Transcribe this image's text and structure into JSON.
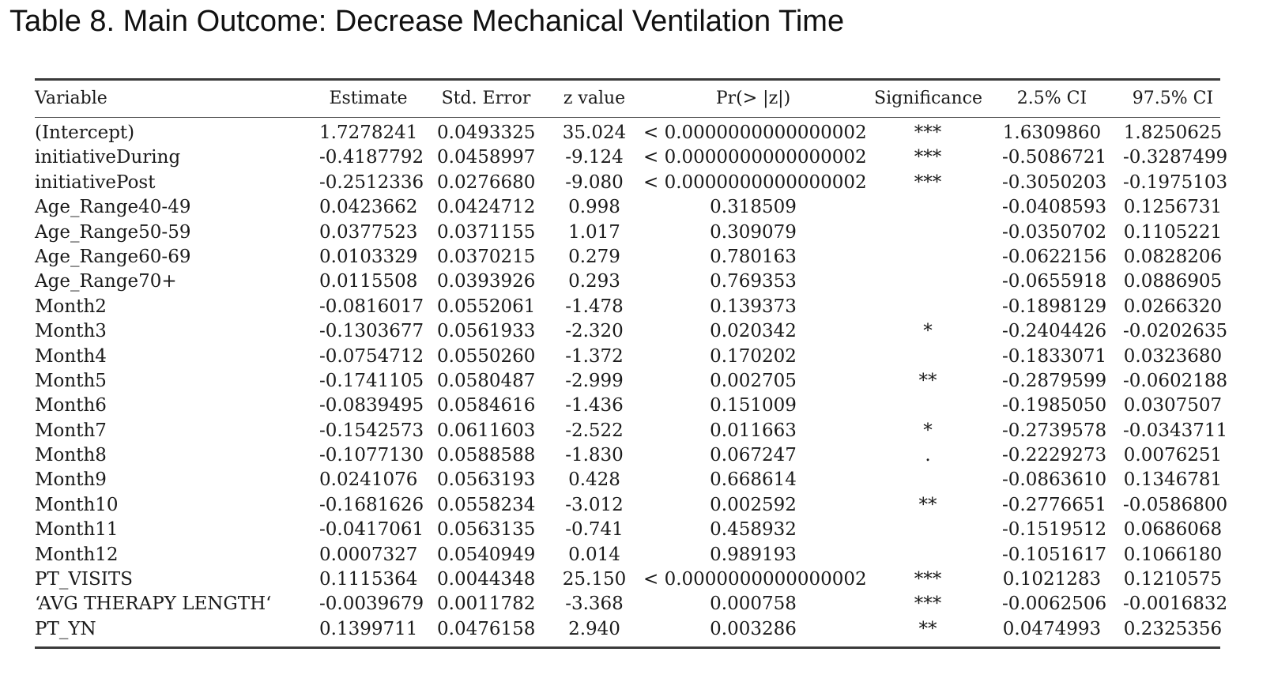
{
  "caption": "Table 8. Main Outcome: Decrease Mechanical Ventilation Time",
  "headers": {
    "variable": "Variable",
    "estimate": "Estimate",
    "std_error": "Std. Error",
    "z_value": "z value",
    "p_value": "Pr(> |z|)",
    "significance": "Significance",
    "ci_low": "2.5% CI",
    "ci_high": "97.5% CI"
  },
  "rows": [
    {
      "variable": "(Intercept)",
      "estimate": "1.7278241",
      "std_error": "0.0493325",
      "z_value": "35.024",
      "p_value": "< 0.0000000000000002",
      "significance": "***",
      "ci_low": "1.6309860",
      "ci_high": "1.8250625"
    },
    {
      "variable": "initiativeDuring",
      "estimate": "-0.4187792",
      "std_error": "0.0458997",
      "z_value": "-9.124",
      "p_value": "< 0.0000000000000002",
      "significance": "***",
      "ci_low": "-0.5086721",
      "ci_high": "-0.3287499"
    },
    {
      "variable": "initiativePost",
      "estimate": "-0.2512336",
      "std_error": "0.0276680",
      "z_value": "-9.080",
      "p_value": "< 0.0000000000000002",
      "significance": "***",
      "ci_low": "-0.3050203",
      "ci_high": "-0.1975103"
    },
    {
      "variable": "Age_Range40-49",
      "estimate": "0.0423662",
      "std_error": "0.0424712",
      "z_value": "0.998",
      "p_value": "0.318509",
      "significance": "",
      "ci_low": "-0.0408593",
      "ci_high": "0.1256731"
    },
    {
      "variable": "Age_Range50-59",
      "estimate": "0.0377523",
      "std_error": "0.0371155",
      "z_value": "1.017",
      "p_value": "0.309079",
      "significance": "",
      "ci_low": "-0.0350702",
      "ci_high": "0.1105221"
    },
    {
      "variable": "Age_Range60-69",
      "estimate": "0.0103329",
      "std_error": "0.0370215",
      "z_value": "0.279",
      "p_value": "0.780163",
      "significance": "",
      "ci_low": "-0.0622156",
      "ci_high": "0.0828206"
    },
    {
      "variable": "Age_Range70+",
      "estimate": "0.0115508",
      "std_error": "0.0393926",
      "z_value": "0.293",
      "p_value": "0.769353",
      "significance": "",
      "ci_low": "-0.0655918",
      "ci_high": "0.0886905"
    },
    {
      "variable": "Month2",
      "estimate": "-0.0816017",
      "std_error": "0.0552061",
      "z_value": "-1.478",
      "p_value": "0.139373",
      "significance": "",
      "ci_low": "-0.1898129",
      "ci_high": "0.0266320"
    },
    {
      "variable": "Month3",
      "estimate": "-0.1303677",
      "std_error": "0.0561933",
      "z_value": "-2.320",
      "p_value": "0.020342",
      "significance": "*",
      "ci_low": "-0.2404426",
      "ci_high": "-0.0202635"
    },
    {
      "variable": "Month4",
      "estimate": "-0.0754712",
      "std_error": "0.0550260",
      "z_value": "-1.372",
      "p_value": "0.170202",
      "significance": "",
      "ci_low": "-0.1833071",
      "ci_high": "0.0323680"
    },
    {
      "variable": "Month5",
      "estimate": "-0.1741105",
      "std_error": "0.0580487",
      "z_value": "-2.999",
      "p_value": "0.002705",
      "significance": "**",
      "ci_low": "-0.2879599",
      "ci_high": "-0.0602188"
    },
    {
      "variable": "Month6",
      "estimate": "-0.0839495",
      "std_error": "0.0584616",
      "z_value": "-1.436",
      "p_value": "0.151009",
      "significance": "",
      "ci_low": "-0.1985050",
      "ci_high": "0.0307507"
    },
    {
      "variable": "Month7",
      "estimate": "-0.1542573",
      "std_error": "0.0611603",
      "z_value": "-2.522",
      "p_value": "0.011663",
      "significance": "*",
      "ci_low": "-0.2739578",
      "ci_high": "-0.0343711"
    },
    {
      "variable": "Month8",
      "estimate": "-0.1077130",
      "std_error": "0.0588588",
      "z_value": "-1.830",
      "p_value": "0.067247",
      "significance": ".",
      "ci_low": "-0.2229273",
      "ci_high": "0.0076251"
    },
    {
      "variable": "Month9",
      "estimate": "0.0241076",
      "std_error": "0.0563193",
      "z_value": "0.428",
      "p_value": "0.668614",
      "significance": "",
      "ci_low": "-0.0863610",
      "ci_high": "0.1346781"
    },
    {
      "variable": "Month10",
      "estimate": "-0.1681626",
      "std_error": "0.0558234",
      "z_value": "-3.012",
      "p_value": "0.002592",
      "significance": "**",
      "ci_low": "-0.2776651",
      "ci_high": "-0.0586800"
    },
    {
      "variable": "Month11",
      "estimate": "-0.0417061",
      "std_error": "0.0563135",
      "z_value": "-0.741",
      "p_value": "0.458932",
      "significance": "",
      "ci_low": "-0.1519512",
      "ci_high": "0.0686068"
    },
    {
      "variable": "Month12",
      "estimate": "0.0007327",
      "std_error": "0.0540949",
      "z_value": "0.014",
      "p_value": "0.989193",
      "significance": "",
      "ci_low": "-0.1051617",
      "ci_high": "0.1066180"
    },
    {
      "variable": "PT_VISITS",
      "estimate": "0.1115364",
      "std_error": "0.0044348",
      "z_value": "25.150",
      "p_value": "< 0.0000000000000002",
      "significance": "***",
      "ci_low": "0.1021283",
      "ci_high": "0.1210575"
    },
    {
      "variable": "‘AVG THERAPY LENGTH‘",
      "estimate": "-0.0039679",
      "std_error": "0.0011782",
      "z_value": "-3.368",
      "p_value": "0.000758",
      "significance": "***",
      "ci_low": "-0.0062506",
      "ci_high": "-0.0016832"
    },
    {
      "variable": "PT_YN",
      "estimate": "0.1399711",
      "std_error": "0.0476158",
      "z_value": "2.940",
      "p_value": "0.003286",
      "significance": "**",
      "ci_low": "0.0474993",
      "ci_high": "0.2325356"
    }
  ]
}
